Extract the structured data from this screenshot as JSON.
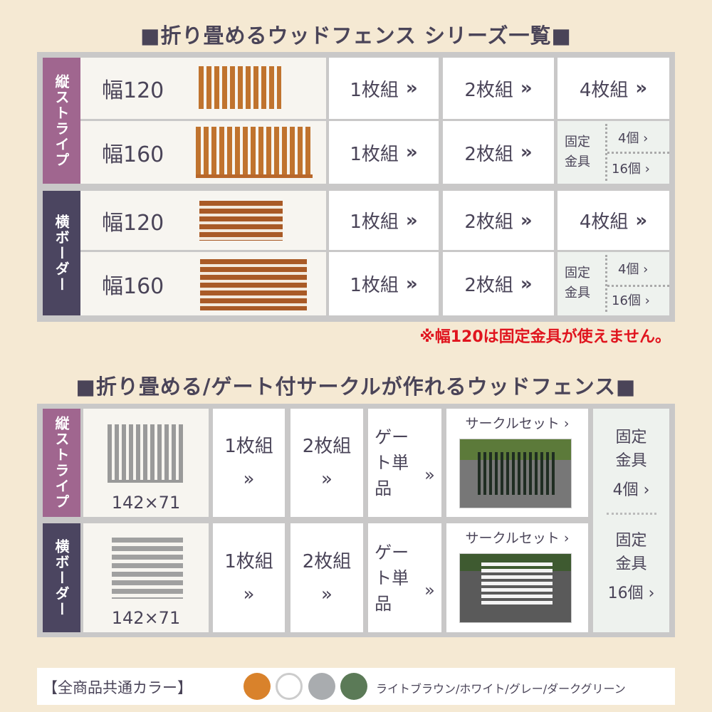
{
  "section1": {
    "title": "■折り畳めるウッドフェンス シリーズ一覧■",
    "groups": [
      {
        "label": "縦ストライプ",
        "rows": [
          {
            "size": "幅120",
            "c1": "1枚組",
            "c2": "2枚組",
            "c3": "4枚組"
          },
          {
            "size": "幅160",
            "c1": "1枚組",
            "c2": "2枚組",
            "fixed_label": "固定金具",
            "fixed_a": "4個",
            "fixed_b": "16個"
          }
        ]
      },
      {
        "label": "横ボーダー",
        "rows": [
          {
            "size": "幅120",
            "c1": "1枚組",
            "c2": "2枚組",
            "c3": "4枚組"
          },
          {
            "size": "幅160",
            "c1": "1枚組",
            "c2": "2枚組",
            "fixed_label": "固定金具",
            "fixed_a": "4個",
            "fixed_b": "16個"
          }
        ]
      }
    ],
    "note": "※幅120は固定金具が使えません。"
  },
  "section2": {
    "title": "■折り畳める/ゲート付サークルが作れるウッドフェンス■",
    "rows": [
      {
        "label": "縦ストライプ",
        "dims": "142×71",
        "c1": "1枚組",
        "c2": "2枚組",
        "gate": "ゲート単品",
        "circle": "サークルセット"
      },
      {
        "label": "横ボーダー",
        "dims": "142×71",
        "c1": "1枚組",
        "c2": "2枚組",
        "gate": "ゲート単品",
        "circle": "サークルセット"
      }
    ],
    "fixed": [
      {
        "label": "固定金具",
        "count": "4個"
      },
      {
        "label": "固定金具",
        "count": "16個"
      }
    ]
  },
  "colors": {
    "label": "【全商品共通カラー】",
    "names": "ライトブラウン/ホワイト/グレー/ダークグリーン",
    "swatches": [
      "#d9822b",
      "#ffffff",
      "#a9acaf",
      "#5b7a57"
    ]
  },
  "chevron": "»",
  "theme": {
    "purple": "#a0668f",
    "dark": "#4b4560",
    "note_red": "#e0141e"
  }
}
